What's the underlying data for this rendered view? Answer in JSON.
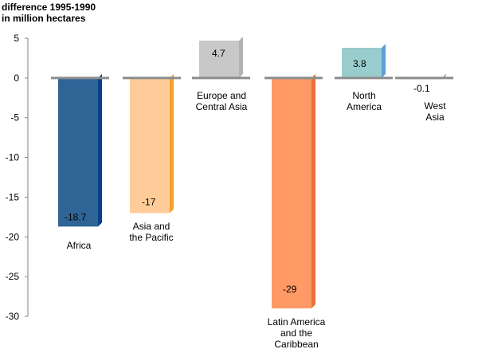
{
  "chart_data": {
    "type": "bar",
    "title_lines": [
      "difference 1995-1990",
      "in million hectares"
    ],
    "categories": [
      [
        "Africa"
      ],
      [
        "Asia and",
        "the Pacific"
      ],
      [
        "Europe and",
        "Central Asia"
      ],
      [
        "Latin America",
        "and the",
        "Caribbean"
      ],
      [
        "North",
        "America"
      ],
      [
        "West",
        "Asia"
      ]
    ],
    "values": [
      -18.7,
      -17,
      4.7,
      -29,
      3.8,
      -0.1
    ],
    "value_labels": [
      "-18.7",
      "-17",
      "4.7",
      "-29",
      "3.8",
      "-0.1"
    ],
    "colors": [
      "#2f6496",
      "#ffcc99",
      "#c8c8c8",
      "#ff9966",
      "#99cccc",
      "#a0a0a0"
    ],
    "side_colors": [
      "#0b3f86",
      "#f5a12e",
      "#b3b3b3",
      "#e8743a",
      "#5c9fd9",
      "#7a7a7a"
    ],
    "y_ticks": [
      5,
      0,
      -5,
      -10,
      -15,
      -20,
      -25,
      -30
    ],
    "ylim": [
      -30,
      5
    ],
    "grid": false
  }
}
